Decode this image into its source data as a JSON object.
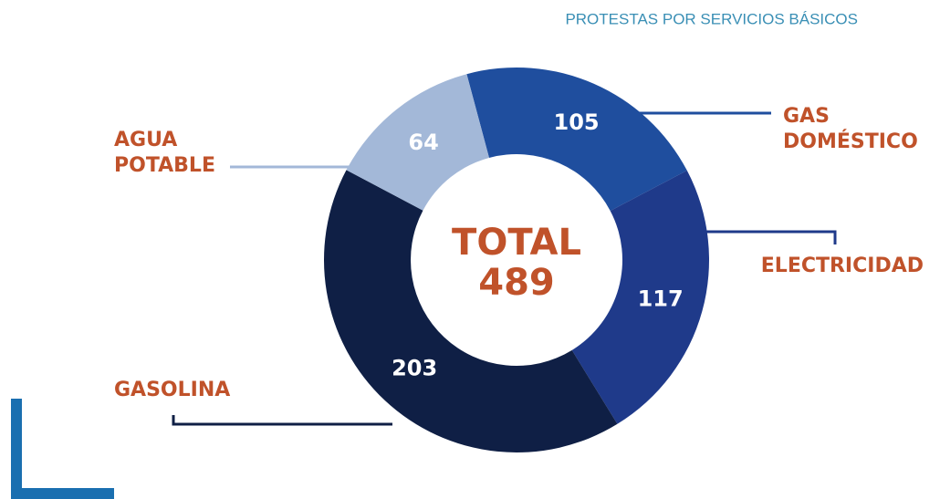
{
  "chart_data": {
    "type": "donut",
    "title": "PROTESTAS POR SERVICIOS BÁSICOS",
    "center_label": "TOTAL",
    "total": 489,
    "categories": [
      "GAS DOMÉSTICO",
      "ELECTRICIDAD",
      "GASOLINA",
      "AGUA POTABLE"
    ],
    "values": [
      105,
      117,
      203,
      64
    ],
    "colors": [
      "#1f4e9e",
      "#1f3a8a",
      "#0f1f45",
      "#a3b8d8"
    ],
    "label_color": "#c0522a"
  }
}
